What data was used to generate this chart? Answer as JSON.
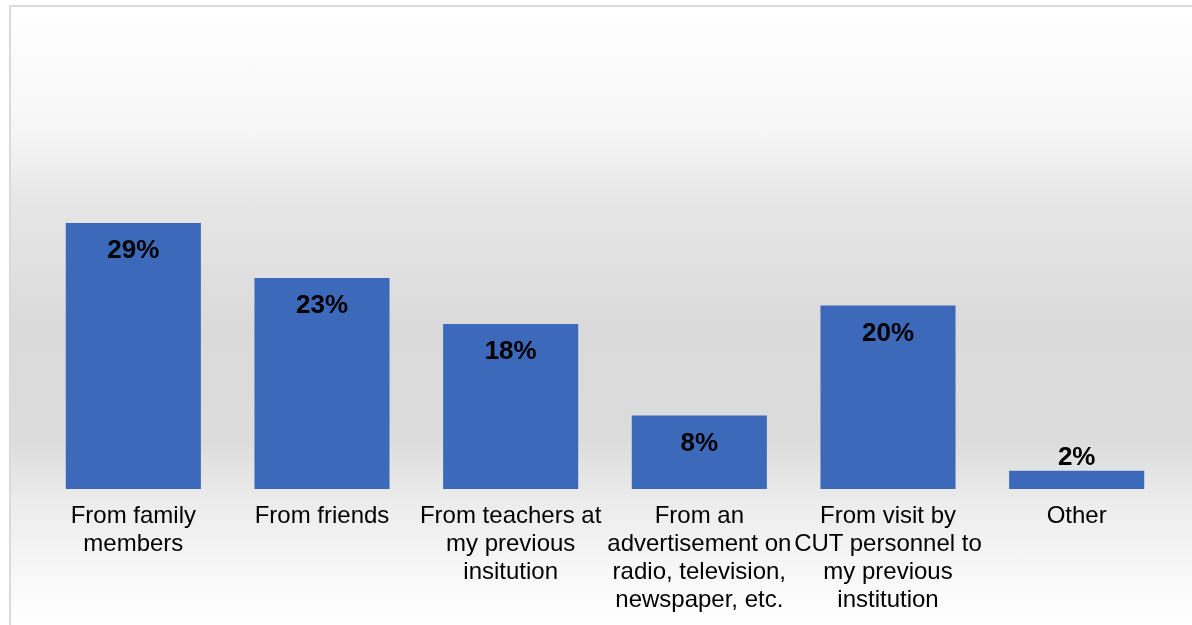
{
  "chart_data": {
    "type": "bar",
    "categories": [
      "From family members",
      "From friends",
      "From teachers at my previous insitution",
      "From an advertisement on radio, television, newspaper, etc.",
      "From visit by CUT personnel to my previous institution",
      "Other"
    ],
    "values": [
      29,
      23,
      18,
      8,
      20,
      2
    ],
    "color": "#3d69ba",
    "value_labels": [
      "29%",
      "23%",
      "18%",
      "8%",
      "20%",
      "2%"
    ]
  }
}
